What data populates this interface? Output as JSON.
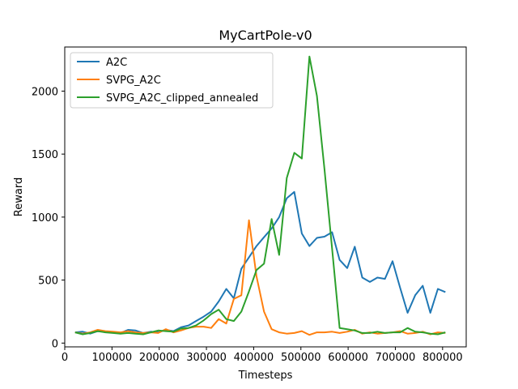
{
  "chart_data": {
    "type": "line",
    "title": "MyCartPole-v0",
    "xlabel": "Timesteps",
    "ylabel": "Reward",
    "xlim": [
      0,
      850000
    ],
    "ylim": [
      -30,
      2350
    ],
    "xticks": [
      0,
      100000,
      200000,
      300000,
      400000,
      500000,
      600000,
      700000,
      800000
    ],
    "xtick_labels": [
      "0",
      "100000",
      "200000",
      "300000",
      "400000",
      "500000",
      "600000",
      "700000",
      "800000"
    ],
    "yticks": [
      0,
      500,
      1000,
      1500,
      2000
    ],
    "ytick_labels": [
      "0",
      "500",
      "1000",
      "1500",
      "2000"
    ],
    "legend_position": "top-left",
    "grid": false,
    "series": [
      {
        "name": "A2C",
        "color": "#1f77b4",
        "x": [
          22000,
          38000,
          54000,
          70000,
          86000,
          102000,
          118000,
          134000,
          150000,
          166000,
          182000,
          198000,
          214000,
          230000,
          246000,
          262000,
          278000,
          294000,
          310000,
          326000,
          342000,
          358000,
          374000,
          390000,
          406000,
          422000,
          438000,
          454000,
          470000,
          486000,
          502000,
          518000,
          534000,
          550000,
          566000,
          582000,
          598000,
          614000,
          630000,
          646000,
          662000,
          678000,
          694000,
          710000,
          726000,
          742000,
          758000,
          774000,
          790000,
          806000
        ],
        "y": [
          85,
          90,
          75,
          95,
          90,
          85,
          80,
          105,
          100,
          80,
          90,
          85,
          105,
          95,
          125,
          140,
          175,
          210,
          250,
          330,
          430,
          355,
          590,
          680,
          770,
          840,
          910,
          1000,
          1150,
          1200,
          870,
          770,
          835,
          845,
          880,
          660,
          595,
          765,
          520,
          485,
          520,
          510,
          650,
          440,
          240,
          380,
          455,
          240,
          430,
          405
        ]
      },
      {
        "name": "SVPG_A2C",
        "color": "#ff7f0e",
        "x": [
          22000,
          38000,
          54000,
          70000,
          86000,
          102000,
          118000,
          134000,
          150000,
          166000,
          182000,
          198000,
          214000,
          230000,
          246000,
          262000,
          278000,
          294000,
          310000,
          326000,
          342000,
          358000,
          374000,
          390000,
          406000,
          422000,
          438000,
          454000,
          470000,
          486000,
          502000,
          518000,
          534000,
          550000,
          566000,
          582000,
          598000,
          614000,
          630000,
          646000,
          662000,
          678000,
          694000,
          710000,
          726000,
          742000,
          758000,
          774000,
          790000,
          806000
        ],
        "y": [
          85,
          75,
          85,
          105,
          95,
          90,
          85,
          95,
          85,
          80,
          85,
          80,
          110,
          85,
          100,
          120,
          130,
          130,
          120,
          190,
          155,
          350,
          380,
          975,
          530,
          250,
          110,
          85,
          75,
          80,
          95,
          65,
          85,
          85,
          90,
          80,
          90,
          105,
          75,
          85,
          75,
          80,
          85,
          95,
          75,
          80,
          90,
          70,
          85,
          80
        ]
      },
      {
        "name": "SVPG_A2C_clipped_annealed",
        "color": "#2ca02c",
        "x": [
          22000,
          38000,
          54000,
          70000,
          86000,
          102000,
          118000,
          134000,
          150000,
          166000,
          182000,
          198000,
          214000,
          230000,
          246000,
          262000,
          278000,
          294000,
          310000,
          326000,
          342000,
          358000,
          374000,
          390000,
          406000,
          422000,
          438000,
          454000,
          470000,
          486000,
          502000,
          518000,
          534000,
          550000,
          566000,
          582000,
          598000,
          614000,
          630000,
          646000,
          662000,
          678000,
          694000,
          710000,
          726000,
          742000,
          758000,
          774000,
          790000,
          806000
        ],
        "y": [
          85,
          70,
          80,
          95,
          85,
          80,
          75,
          80,
          75,
          70,
          85,
          100,
          95,
          90,
          115,
          120,
          140,
          180,
          230,
          265,
          190,
          175,
          250,
          410,
          580,
          630,
          985,
          700,
          1310,
          1510,
          1465,
          2275,
          1960,
          1380,
          750,
          120,
          110,
          100,
          80,
          80,
          90,
          80,
          85,
          85,
          120,
          90,
          85,
          75,
          70,
          85
        ]
      }
    ]
  }
}
